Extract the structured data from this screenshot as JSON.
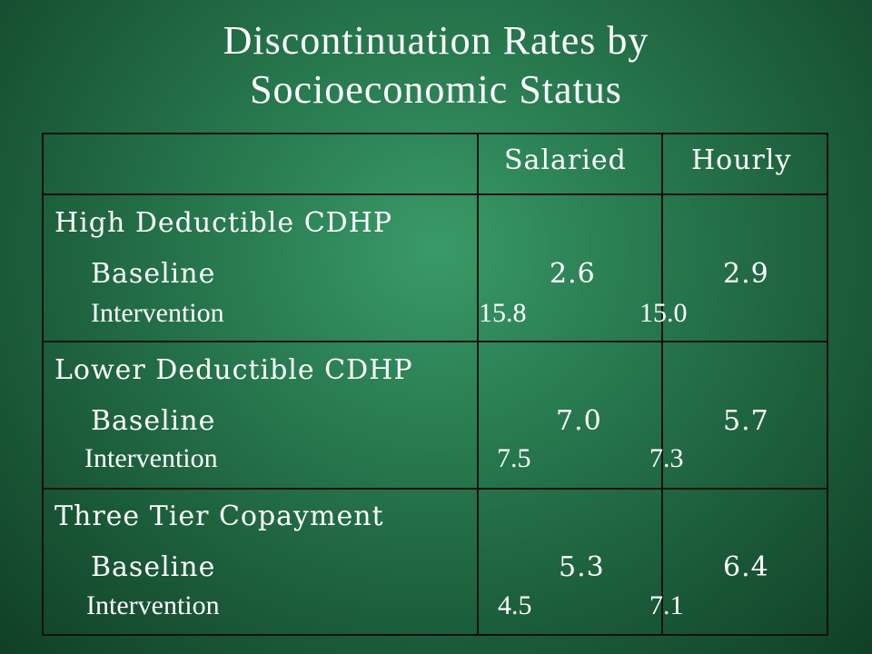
{
  "title": {
    "line1": "Discontinuation Rates by",
    "line2": "Socioeconomic Status"
  },
  "table": {
    "columns": [
      "Salaried",
      "Hourly"
    ],
    "groups": [
      {
        "name": "High Deductible CDHP",
        "rows": [
          {
            "label": "Baseline",
            "salaried": "2.6",
            "hourly": "2.9"
          },
          {
            "label": "Intervention",
            "salaried": "15.8",
            "hourly": "15.0"
          }
        ]
      },
      {
        "name": "Lower Deductible CDHP",
        "rows": [
          {
            "label": "Baseline",
            "salaried": "7.0",
            "hourly": "5.7"
          },
          {
            "label": "Intervention",
            "salaried": "7.5",
            "hourly": "7.3"
          }
        ]
      },
      {
        "name": "Three Tier Copayment",
        "rows": [
          {
            "label": "Baseline",
            "salaried": "5.3",
            "hourly": "6.4"
          },
          {
            "label": "Intervention",
            "salaried": "4.5",
            "hourly": "7.1"
          }
        ]
      }
    ]
  }
}
